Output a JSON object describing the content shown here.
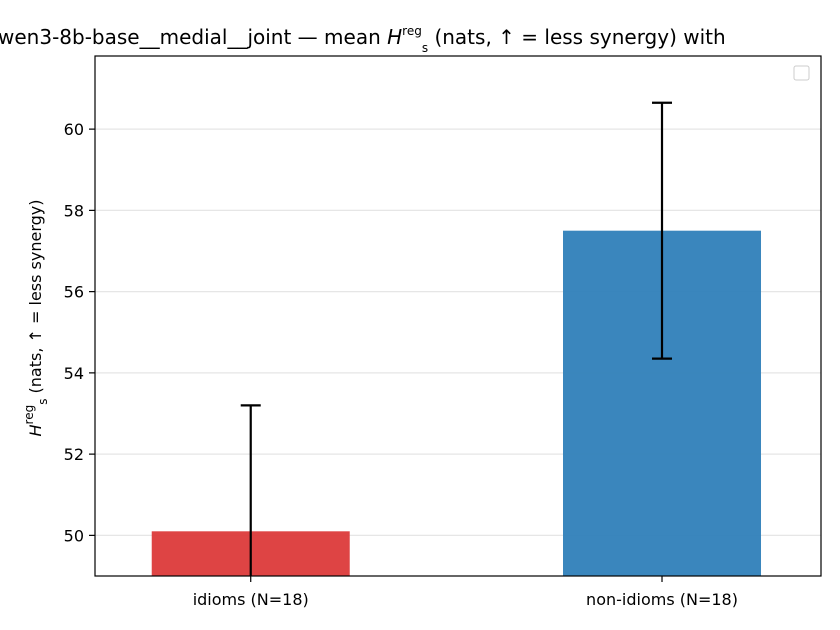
{
  "chart_data": {
    "type": "bar",
    "title": {
      "prefix": "wen3-8b-base__medial__joint — mean ",
      "symbol": "H",
      "subscript": "s",
      "superscript": "reg",
      "suffix": " (nats, ↑ = less synergy) with"
    },
    "ylabel": {
      "symbol": "H",
      "subscript": "s",
      "superscript": "reg",
      "suffix": " (nats, ↑ = less synergy)"
    },
    "xlabel": "",
    "categories": [
      "idioms (N=18)",
      "non-idioms (N=18)"
    ],
    "values": [
      50.1,
      57.5
    ],
    "errors": [
      3.1,
      3.15
    ],
    "colors": [
      "#dc3a3a",
      "#2f7fb9"
    ],
    "ylim": [
      49.0,
      61.8
    ],
    "yticks": [
      50,
      52,
      54,
      56,
      58,
      60
    ],
    "grid": true,
    "legend": {
      "placement": "top-right",
      "entries": []
    }
  }
}
